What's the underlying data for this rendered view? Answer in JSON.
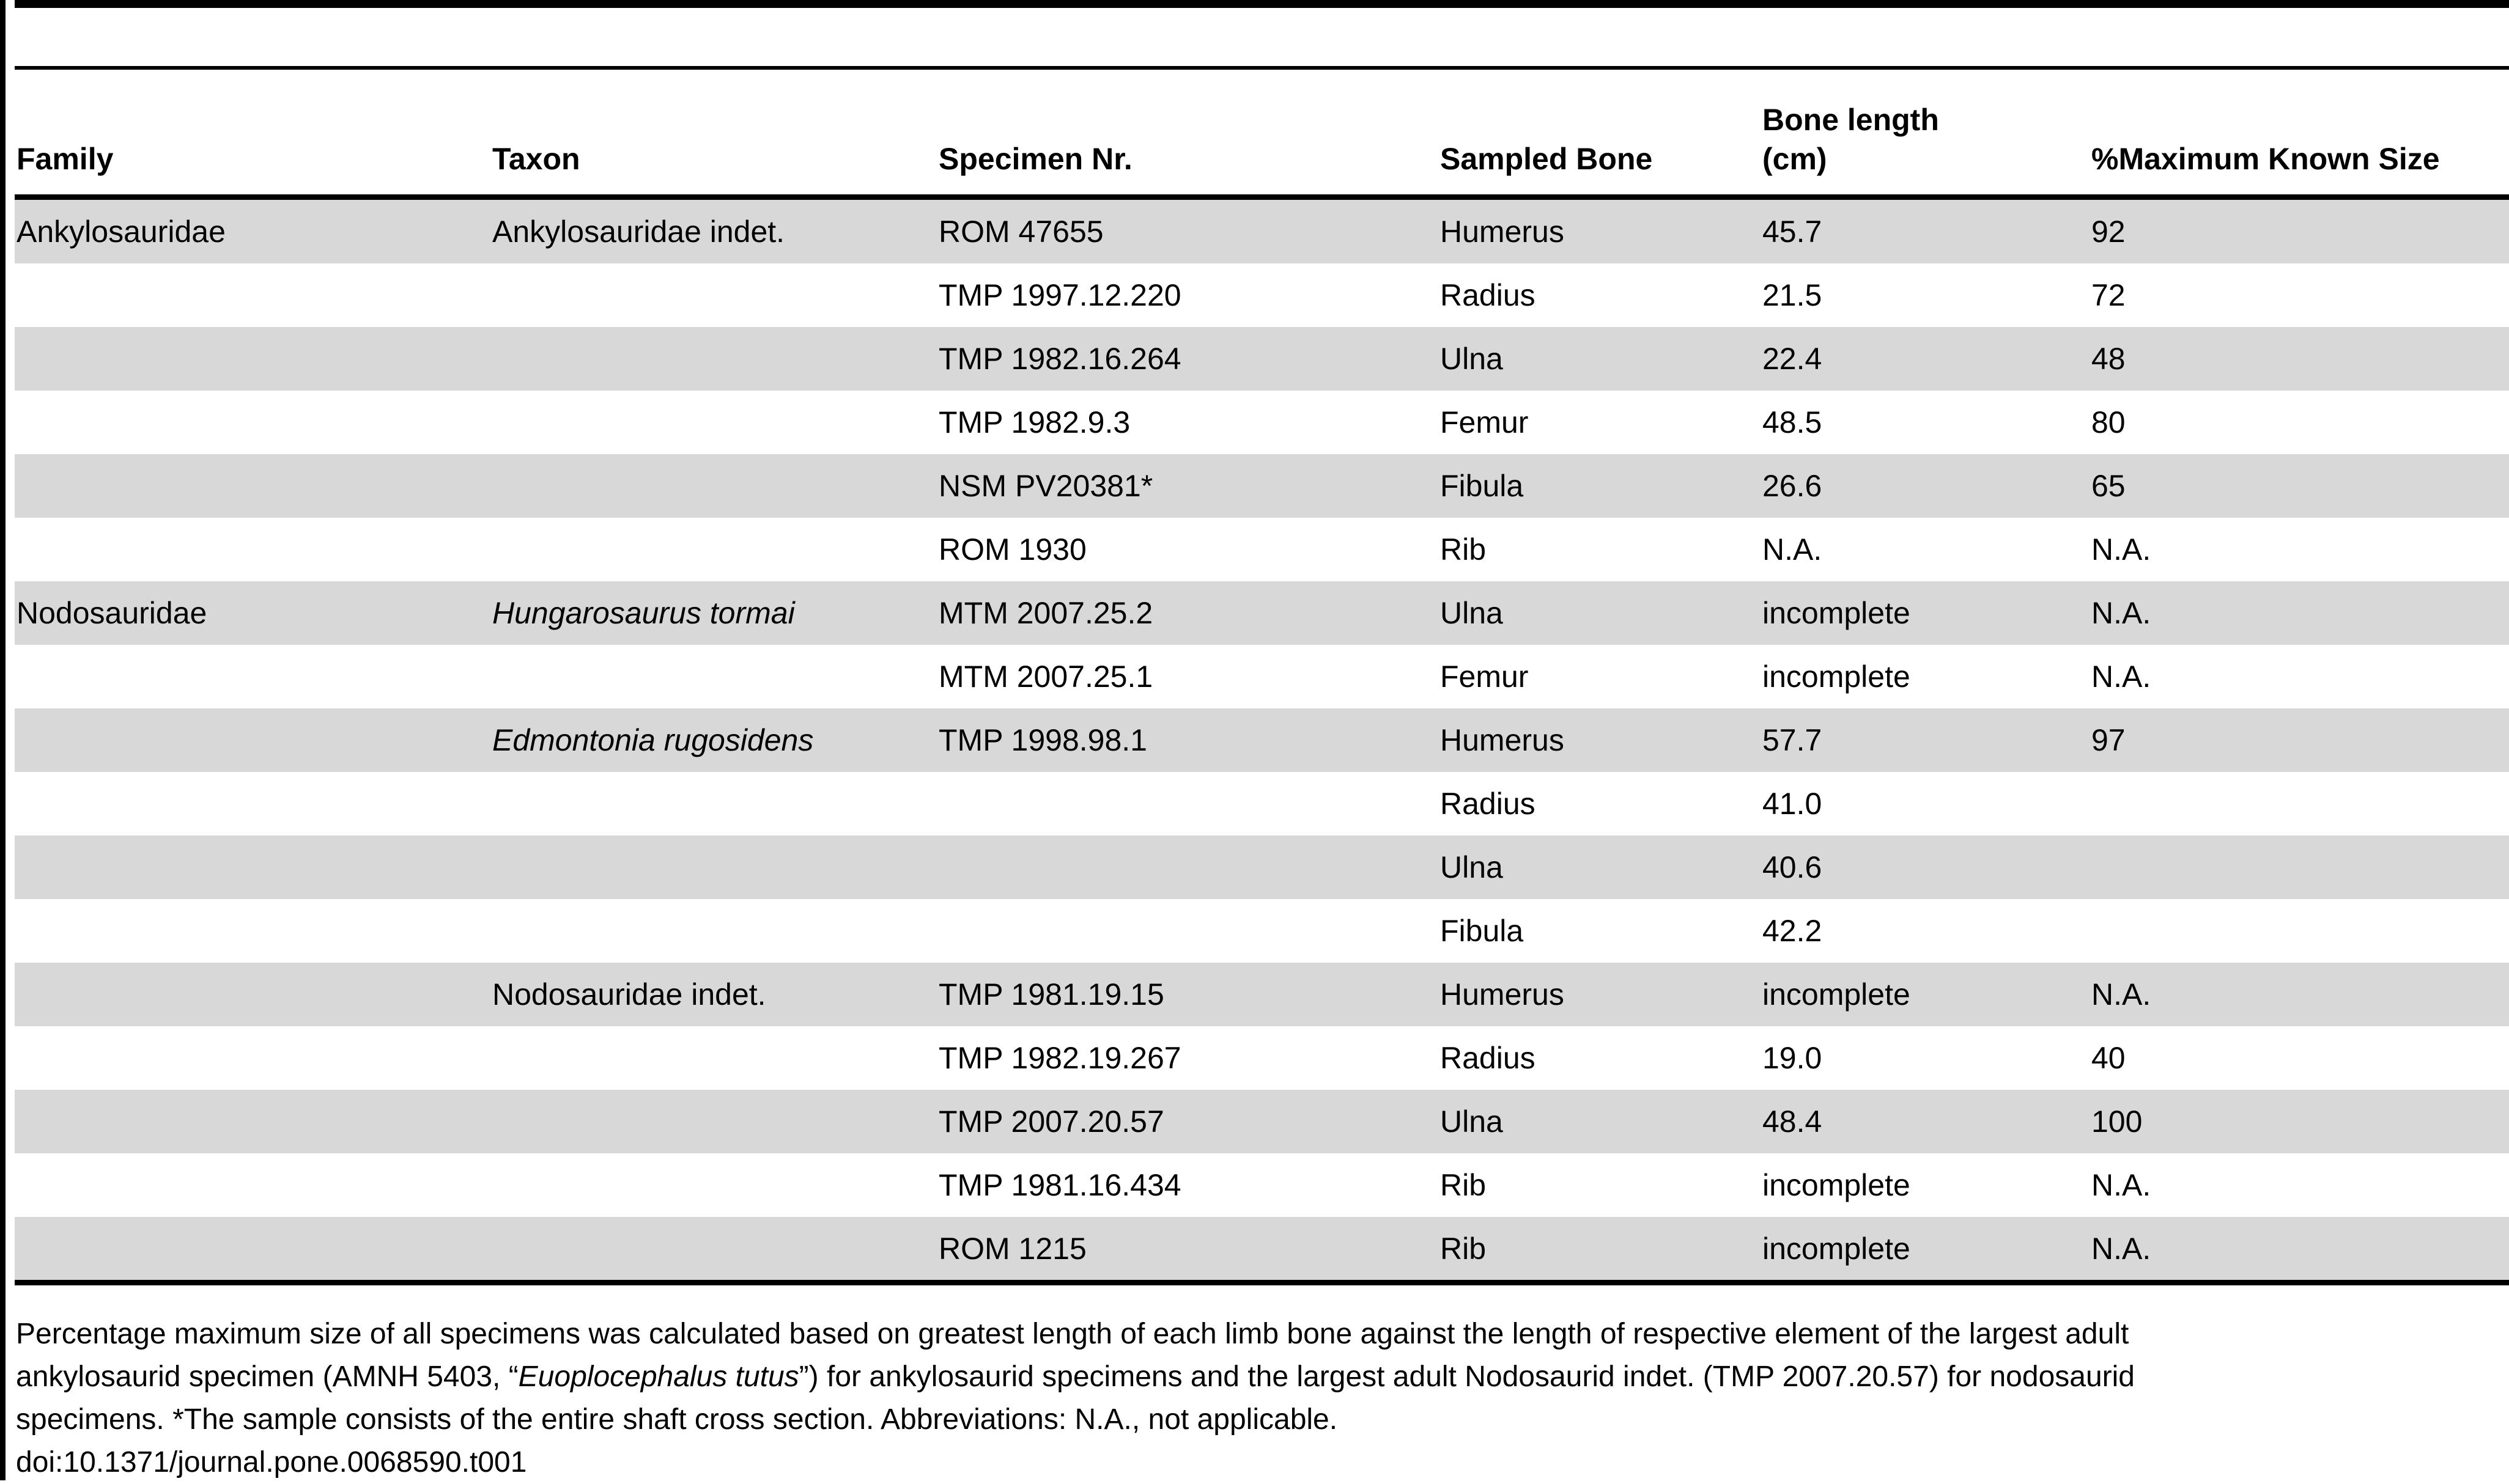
{
  "colors": {
    "zebra_gray": "#d8d8d8",
    "rule_black": "#000000",
    "background": "#ffffff"
  },
  "table": {
    "headers": {
      "family": "Family",
      "taxon": "Taxon",
      "specimen": "Specimen Nr.",
      "sampled_bone": "Sampled Bone",
      "bone_length_line1": "Bone length",
      "bone_length_line2": "(cm)",
      "max_size": "%Maximum Known Size"
    },
    "rows": [
      {
        "family": "Ankylosauridae",
        "taxon": "Ankylosauridae indet.",
        "taxon_italic": false,
        "specimen": "ROM 47655",
        "bone": "Humerus",
        "length": "45.7",
        "max": "92"
      },
      {
        "family": "",
        "taxon": "",
        "taxon_italic": false,
        "specimen": "TMP 1997.12.220",
        "bone": "Radius",
        "length": "21.5",
        "max": "72"
      },
      {
        "family": "",
        "taxon": "",
        "taxon_italic": false,
        "specimen": "TMP 1982.16.264",
        "bone": "Ulna",
        "length": "22.4",
        "max": "48"
      },
      {
        "family": "",
        "taxon": "",
        "taxon_italic": false,
        "specimen": "TMP 1982.9.3",
        "bone": "Femur",
        "length": "48.5",
        "max": "80"
      },
      {
        "family": "",
        "taxon": "",
        "taxon_italic": false,
        "specimen": "NSM PV20381*",
        "bone": "Fibula",
        "length": "26.6",
        "max": "65"
      },
      {
        "family": "",
        "taxon": "",
        "taxon_italic": false,
        "specimen": "ROM 1930",
        "bone": "Rib",
        "length": "N.A.",
        "max": "N.A."
      },
      {
        "family": "Nodosauridae",
        "taxon": "Hungarosaurus tormai",
        "taxon_italic": true,
        "specimen": "MTM 2007.25.2",
        "bone": "Ulna",
        "length": "incomplete",
        "max": "N.A."
      },
      {
        "family": "",
        "taxon": "",
        "taxon_italic": false,
        "specimen": "MTM 2007.25.1",
        "bone": "Femur",
        "length": "incomplete",
        "max": "N.A."
      },
      {
        "family": "",
        "taxon": "Edmontonia rugosidens",
        "taxon_italic": true,
        "specimen": "TMP 1998.98.1",
        "bone": "Humerus",
        "length": "57.7",
        "max": "97"
      },
      {
        "family": "",
        "taxon": "",
        "taxon_italic": false,
        "specimen": "",
        "bone": "Radius",
        "length": "41.0",
        "max": ""
      },
      {
        "family": "",
        "taxon": "",
        "taxon_italic": false,
        "specimen": "",
        "bone": "Ulna",
        "length": "40.6",
        "max": ""
      },
      {
        "family": "",
        "taxon": "",
        "taxon_italic": false,
        "specimen": "",
        "bone": "Fibula",
        "length": "42.2",
        "max": ""
      },
      {
        "family": "",
        "taxon": "Nodosauridae indet.",
        "taxon_italic": false,
        "specimen": "TMP 1981.19.15",
        "bone": "Humerus",
        "length": "incomplete",
        "max": "N.A."
      },
      {
        "family": "",
        "taxon": "",
        "taxon_italic": false,
        "specimen": "TMP 1982.19.267",
        "bone": "Radius",
        "length": "19.0",
        "max": "40"
      },
      {
        "family": "",
        "taxon": "",
        "taxon_italic": false,
        "specimen": "TMP 2007.20.57",
        "bone": "Ulna",
        "length": "48.4",
        "max": "100"
      },
      {
        "family": "",
        "taxon": "",
        "taxon_italic": false,
        "specimen": "TMP 1981.16.434",
        "bone": "Rib",
        "length": "incomplete",
        "max": "N.A."
      },
      {
        "family": "",
        "taxon": "",
        "taxon_italic": false,
        "specimen": "ROM 1215",
        "bone": "Rib",
        "length": "incomplete",
        "max": "N.A."
      }
    ]
  },
  "footnote": {
    "line1": "Percentage maximum size of all specimens was calculated based on greatest length of each limb bone against the length of respective element of the largest adult",
    "line2_pre": "ankylosaurid specimen (AMNH 5403, “",
    "line2_italic": "Euoplocephalus tutus",
    "line2_post": "”) for ankylosaurid specimens and the largest adult Nodosaurid indet. (TMP 2007.20.57) for nodosaurid",
    "line3": "specimens. *The sample consists of the entire shaft cross section. Abbreviations: N.A., not applicable.",
    "doi": "doi:10.1371/journal.pone.0068590.t001"
  }
}
